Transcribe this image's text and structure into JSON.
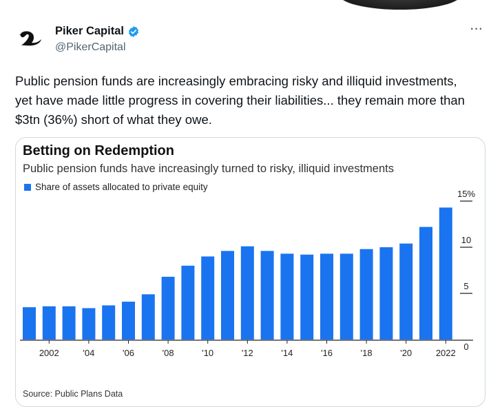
{
  "tweet": {
    "author_name": "Piker Capital",
    "handle": "@PikerCapital",
    "text": "Public pension funds are increasingly embracing risky and illiquid investments, yet have made little progress in covering their liabilities... they remain more than $3tn (36%) short of what they owe.",
    "more_label": "···"
  },
  "chart_data": {
    "type": "bar",
    "title": "Betting on Redemption",
    "subtitle": "Public pension funds have increasingly turned to risky, illiquid investments",
    "series": [
      {
        "name": "Share of assets allocated to private equity",
        "color": "#1a74f0",
        "values": [
          3.5,
          3.6,
          3.6,
          3.4,
          3.7,
          4.1,
          4.9,
          6.8,
          8.0,
          9.0,
          9.6,
          10.1,
          9.6,
          9.3,
          9.2,
          9.3,
          9.3,
          9.8,
          10.0,
          10.4,
          12.2,
          14.3
        ]
      }
    ],
    "x": [
      2001,
      2002,
      2003,
      2004,
      2005,
      2006,
      2007,
      2008,
      2009,
      2010,
      2011,
      2012,
      2013,
      2014,
      2015,
      2016,
      2017,
      2018,
      2019,
      2020,
      2021,
      2022
    ],
    "x_tick_labels": [
      {
        "x": 2002,
        "label": "2002"
      },
      {
        "x": 2004,
        "label": "'04"
      },
      {
        "x": 2006,
        "label": "'06"
      },
      {
        "x": 2008,
        "label": "'08"
      },
      {
        "x": 2010,
        "label": "'10"
      },
      {
        "x": 2012,
        "label": "'12"
      },
      {
        "x": 2014,
        "label": "'14"
      },
      {
        "x": 2016,
        "label": "'16"
      },
      {
        "x": 2018,
        "label": "'18"
      },
      {
        "x": 2020,
        "label": "'20"
      },
      {
        "x": 2022,
        "label": "2022"
      }
    ],
    "y_ticks": [
      {
        "value": 0,
        "label": "0"
      },
      {
        "value": 5,
        "label": "5"
      },
      {
        "value": 10,
        "label": "10"
      },
      {
        "value": 15,
        "label": "15%"
      }
    ],
    "ylim": [
      0,
      15
    ],
    "grid": false,
    "y_axis_side": "right",
    "legend_position": "top-left",
    "source": "Source: Public Plans Data"
  }
}
